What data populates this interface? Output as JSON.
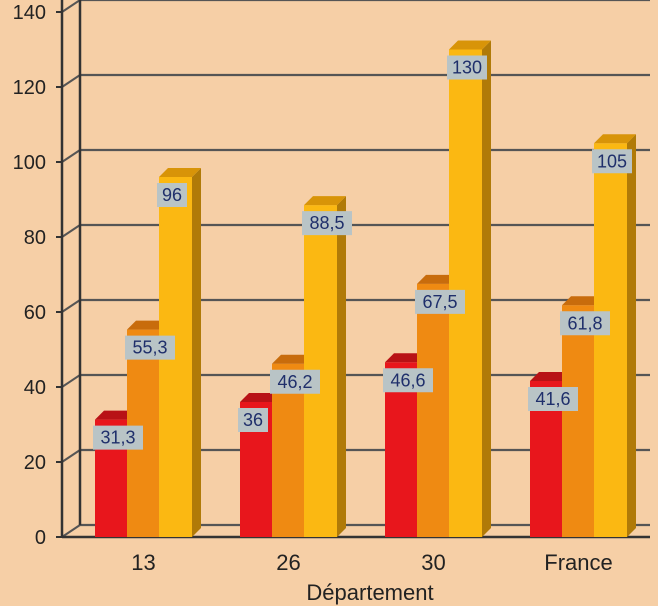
{
  "chart_data": {
    "type": "bar",
    "xlabel": "Département",
    "ylabel": "",
    "ylim": [
      0,
      140
    ],
    "yticks": [
      0,
      20,
      40,
      60,
      80,
      100,
      120,
      140
    ],
    "categories": [
      "13",
      "26",
      "30",
      "France"
    ],
    "series": [
      {
        "values": [
          31.3,
          36,
          46.6,
          41.6
        ],
        "labels": [
          "31,3",
          "36",
          "46,6",
          "41,6"
        ]
      },
      {
        "values": [
          55.3,
          46.2,
          67.5,
          61.8
        ],
        "labels": [
          "55,3",
          "46,2",
          "67,5",
          "61,8"
        ]
      },
      {
        "values": [
          96,
          88.5,
          130,
          105
        ],
        "labels": [
          "96",
          "88,5",
          "130",
          "105"
        ]
      }
    ],
    "grid": true,
    "legend": "none"
  },
  "colors": {
    "background": "#f6cfa6",
    "grid": "#555555",
    "axis": "#333333",
    "series": [
      "#e8161c",
      "#ef8a12",
      "#fbb812"
    ],
    "series_side": [
      "#9e1013",
      "#a85a0a",
      "#b07a08"
    ],
    "series_top": [
      "#b81216",
      "#c86c0c",
      "#d89408"
    ],
    "label_box": "#b9c4c6",
    "label_text": "#1f2f6b"
  }
}
